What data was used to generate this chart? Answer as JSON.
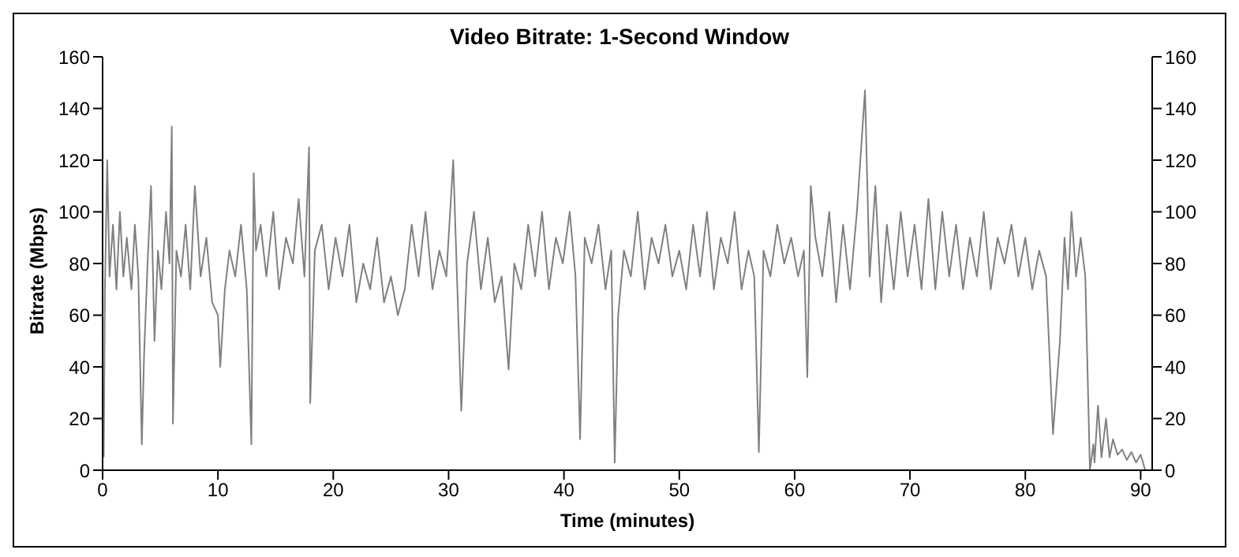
{
  "chart_data": {
    "type": "line",
    "title": "Video Bitrate: 1-Second Window",
    "xlabel": "Time (minutes)",
    "ylabel": "Bitrate (Mbps)",
    "xlim": [
      0,
      91
    ],
    "xticks": [
      0,
      10,
      20,
      30,
      40,
      50,
      60,
      70,
      80,
      90
    ],
    "ylim": [
      0,
      160
    ],
    "yticks": [
      0,
      20,
      40,
      60,
      80,
      100,
      120,
      140,
      160
    ],
    "y2lim": [
      0,
      160
    ],
    "y2ticks": [
      0,
      20,
      40,
      60,
      80,
      100,
      120,
      140,
      160
    ],
    "grid": false,
    "legend": false,
    "marker": "none",
    "line_style": "solid",
    "x": [
      0.1,
      0.2,
      0.4,
      0.6,
      0.9,
      1.2,
      1.5,
      1.8,
      2.1,
      2.5,
      2.8,
      3.1,
      3.4,
      3.6,
      3.9,
      4.2,
      4.5,
      4.8,
      5.1,
      5.5,
      5.8,
      6.0,
      6.1,
      6.4,
      6.8,
      7.2,
      7.6,
      8.0,
      8.5,
      9.0,
      9.5,
      10.0,
      10.2,
      10.6,
      11.0,
      11.5,
      12.0,
      12.5,
      12.9,
      13.1,
      13.3,
      13.7,
      14.2,
      14.8,
      15.3,
      15.9,
      16.5,
      17.0,
      17.5,
      17.9,
      18.0,
      18.4,
      19.0,
      19.6,
      20.2,
      20.8,
      21.4,
      22.0,
      22.6,
      23.2,
      23.8,
      24.4,
      25.0,
      25.6,
      26.2,
      26.8,
      27.4,
      28.0,
      28.6,
      29.2,
      29.8,
      30.4,
      31.1,
      31.6,
      32.2,
      32.8,
      33.4,
      34.0,
      34.6,
      35.2,
      35.7,
      36.3,
      36.9,
      37.5,
      38.1,
      38.7,
      39.3,
      39.9,
      40.5,
      41.0,
      41.4,
      41.8,
      42.4,
      43.0,
      43.6,
      44.1,
      44.4,
      44.7,
      45.2,
      45.8,
      46.4,
      47.0,
      47.6,
      48.2,
      48.8,
      49.4,
      50.0,
      50.6,
      51.2,
      51.8,
      52.4,
      53.0,
      53.6,
      54.2,
      54.8,
      55.4,
      56.0,
      56.5,
      56.9,
      57.3,
      57.9,
      58.5,
      59.1,
      59.7,
      60.3,
      60.8,
      61.1,
      61.4,
      61.8,
      62.4,
      63.0,
      63.6,
      64.2,
      64.8,
      65.4,
      66.1,
      66.5,
      67.0,
      67.5,
      68.0,
      68.6,
      69.2,
      69.8,
      70.4,
      71.0,
      71.6,
      72.2,
      72.8,
      73.4,
      74.0,
      74.6,
      75.2,
      75.8,
      76.4,
      77.0,
      77.6,
      78.2,
      78.8,
      79.4,
      80.0,
      80.6,
      81.2,
      81.8,
      82.4,
      83.0,
      83.4,
      83.7,
      84.0,
      84.4,
      84.8,
      85.2,
      85.6,
      85.9,
      86.0,
      86.3,
      86.6,
      87.0,
      87.3,
      87.6,
      88.0,
      88.4,
      88.8,
      89.2,
      89.6,
      90.0,
      90.4
    ],
    "series": [
      {
        "color": "#808080",
        "values": [
          5,
          70,
          120,
          75,
          95,
          70,
          100,
          75,
          90,
          70,
          95,
          75,
          10,
          45,
          80,
          110,
          50,
          85,
          70,
          100,
          80,
          133,
          18,
          85,
          75,
          95,
          70,
          110,
          75,
          90,
          65,
          60,
          40,
          70,
          85,
          75,
          95,
          70,
          10,
          115,
          85,
          95,
          75,
          100,
          70,
          90,
          80,
          105,
          75,
          125,
          26,
          85,
          95,
          70,
          90,
          75,
          95,
          65,
          80,
          70,
          90,
          65,
          75,
          60,
          70,
          95,
          75,
          100,
          70,
          85,
          75,
          120,
          23,
          80,
          100,
          70,
          90,
          65,
          75,
          39,
          80,
          70,
          95,
          75,
          100,
          70,
          90,
          80,
          100,
          75,
          12,
          90,
          80,
          95,
          70,
          85,
          3,
          60,
          85,
          75,
          100,
          70,
          90,
          80,
          95,
          75,
          85,
          70,
          95,
          75,
          100,
          70,
          90,
          80,
          100,
          70,
          85,
          75,
          7,
          85,
          75,
          95,
          80,
          90,
          75,
          85,
          36,
          110,
          90,
          75,
          100,
          65,
          95,
          70,
          100,
          147,
          75,
          110,
          65,
          95,
          70,
          100,
          75,
          95,
          70,
          105,
          70,
          100,
          75,
          95,
          70,
          90,
          75,
          100,
          70,
          90,
          80,
          95,
          75,
          90,
          70,
          85,
          75,
          14,
          50,
          90,
          70,
          100,
          75,
          90,
          75,
          0,
          10,
          3,
          25,
          5,
          20,
          5,
          12,
          6,
          8,
          4,
          7,
          3,
          6,
          0
        ]
      }
    ]
  }
}
